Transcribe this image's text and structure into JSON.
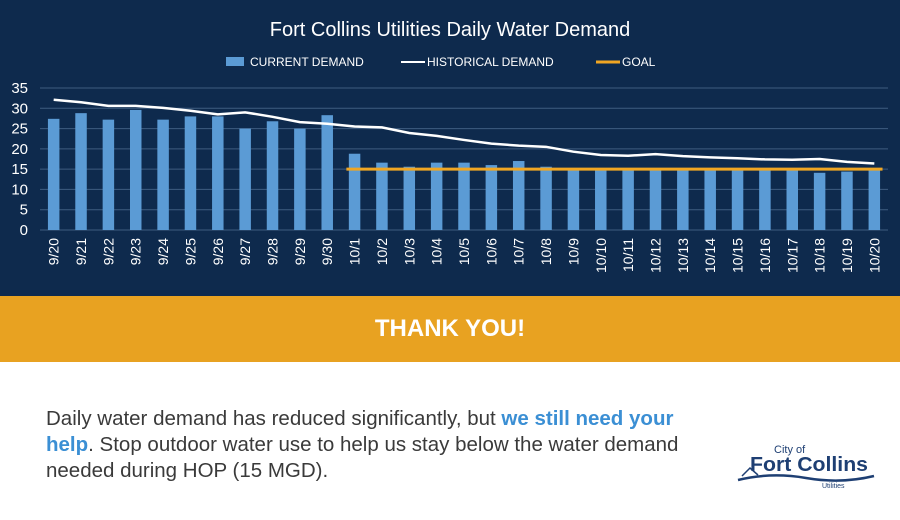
{
  "chart_data": {
    "type": "bar",
    "title": "Fort Collins Utilities Daily Water Demand",
    "categories": [
      "9/20",
      "9/21",
      "9/22",
      "9/23",
      "9/24",
      "9/25",
      "9/26",
      "9/27",
      "9/28",
      "9/29",
      "9/30",
      "10/1",
      "10/2",
      "10/3",
      "10/4",
      "10/5",
      "10/6",
      "10/7",
      "10/8",
      "10/9",
      "10/10",
      "10/11",
      "10/12",
      "10/13",
      "10/14",
      "10/15",
      "10/16",
      "10/17",
      "10/18",
      "10/19",
      "10/20"
    ],
    "series": [
      {
        "name": "CURRENT DEMAND",
        "type": "bar",
        "color": "#5b9bd5",
        "values": [
          27.4,
          28.8,
          27.2,
          29.6,
          27.2,
          28.0,
          28.0,
          25.0,
          26.8,
          25.0,
          28.3,
          18.8,
          16.6,
          15.6,
          16.6,
          16.6,
          16.0,
          17.0,
          15.6,
          15.0,
          15.0,
          15.0,
          15.0,
          15.0,
          15.0,
          15.0,
          15.0,
          14.9,
          14.1,
          14.4,
          15.0
        ]
      },
      {
        "name": "HISTORICAL DEMAND",
        "type": "line",
        "color": "#ffffff",
        "values": [
          32.1,
          31.5,
          30.6,
          30.6,
          30.1,
          29.4,
          28.5,
          29.0,
          27.9,
          26.6,
          26.2,
          25.5,
          25.3,
          23.9,
          23.2,
          22.2,
          21.3,
          20.8,
          20.5,
          19.3,
          18.5,
          18.3,
          18.7,
          18.2,
          17.9,
          17.7,
          17.4,
          17.3,
          17.5,
          16.8,
          16.4
        ]
      },
      {
        "name": "GOAL",
        "type": "line",
        "color": "#f0a623",
        "start": "10/1",
        "value": 15
      }
    ],
    "ylim": [
      0,
      35
    ],
    "yticks": [
      0,
      5,
      10,
      15,
      20,
      25,
      30,
      35
    ],
    "grid": true,
    "legend_position": "top"
  },
  "banner": {
    "text": "THANK YOU!"
  },
  "message": {
    "part1": "Daily water demand has reduced significantly, but ",
    "highlight": "we still need your help",
    "part2": ". Stop outdoor water use to help us stay below the water demand needed during HOP (15 MGD)."
  },
  "logo": {
    "line1": "City of",
    "line2": "Fort Collins",
    "line3": "Utilities"
  },
  "colors": {
    "panel": "#0e2a4d",
    "banner": "#e8a221",
    "highlight": "#3b8fd4"
  }
}
